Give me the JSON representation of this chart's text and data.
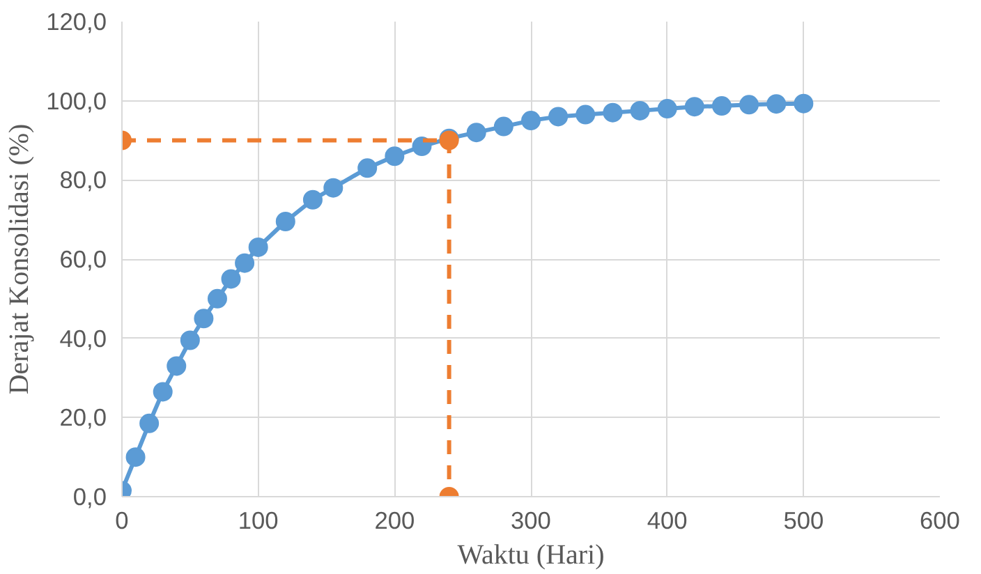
{
  "chart_data": {
    "type": "line",
    "xlabel": "Waktu (Hari)",
    "ylabel": "Derajat Konsolidasi (%)",
    "xlim": [
      0,
      600
    ],
    "ylim": [
      0,
      120
    ],
    "xticks": [
      0,
      100,
      200,
      300,
      400,
      500,
      600
    ],
    "yticks": [
      {
        "value": 0,
        "label": "0,0"
      },
      {
        "value": 20,
        "label": "20,0"
      },
      {
        "value": 40,
        "label": "40,0"
      },
      {
        "value": 60,
        "label": "60,0"
      },
      {
        "value": 80,
        "label": "80,0"
      },
      {
        "value": 100,
        "label": "100,0"
      },
      {
        "value": 120,
        "label": "120,0"
      }
    ],
    "grid": true,
    "marker": "circle",
    "series": [
      {
        "color": "#5b9bd5",
        "line_style": "solid",
        "x": [
          0,
          10,
          20,
          30,
          40,
          50,
          60,
          70,
          80,
          90,
          100,
          120,
          140,
          155,
          180,
          200,
          220,
          240,
          260,
          280,
          300,
          320,
          340,
          360,
          380,
          400,
          420,
          440,
          460,
          480,
          500
        ],
        "values": [
          1.5,
          10,
          18.5,
          26.5,
          33,
          39.5,
          45,
          50,
          55,
          59,
          63,
          69.5,
          75,
          78,
          83,
          86,
          88.5,
          90.5,
          92,
          93.5,
          95,
          96,
          96.5,
          97,
          97.5,
          98,
          98.5,
          98.7,
          99,
          99.2,
          99.3
        ]
      },
      {
        "color": "#ed7d31",
        "line_style": "dashed",
        "x": [
          0,
          240,
          240
        ],
        "values": [
          90,
          90,
          0
        ]
      }
    ]
  }
}
